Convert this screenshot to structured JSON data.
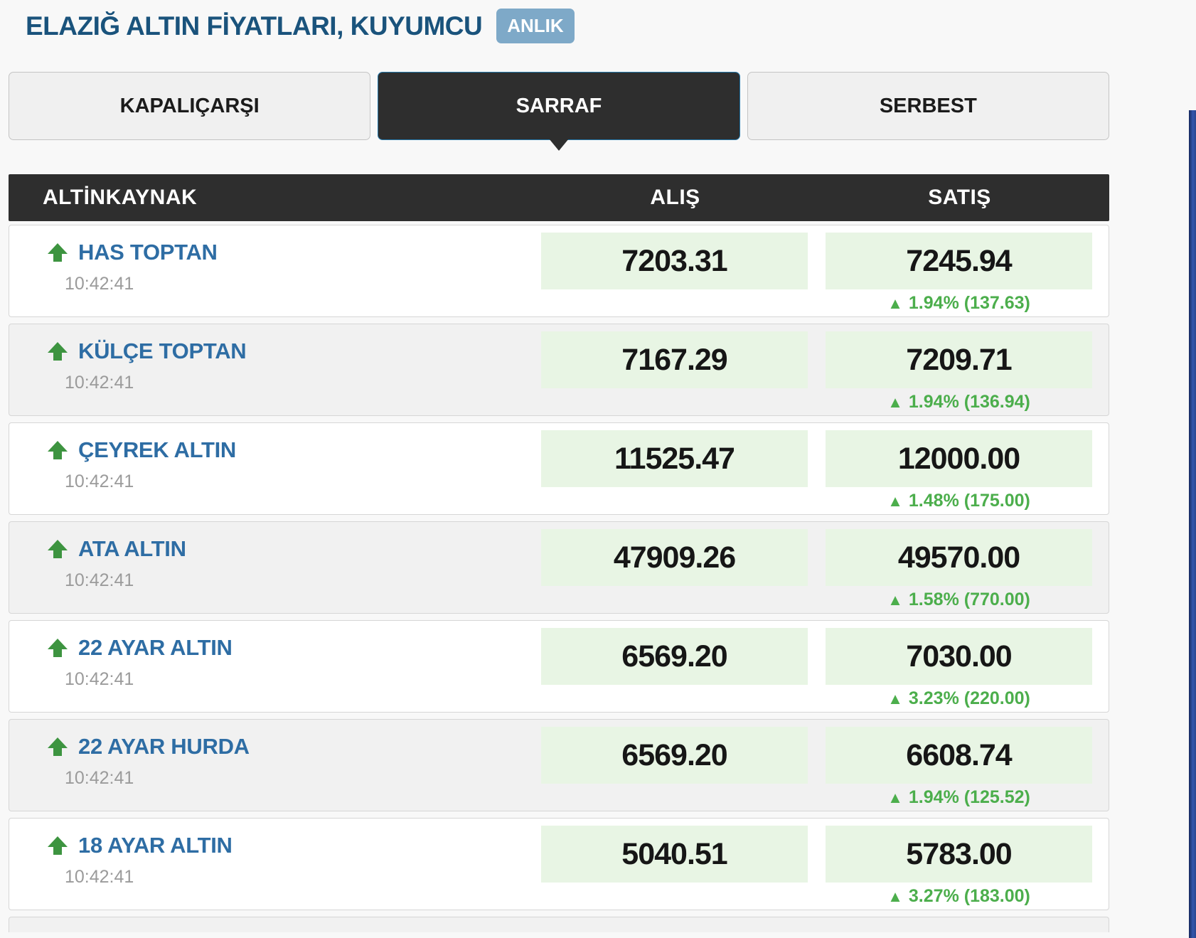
{
  "page": {
    "title": "ELAZIĞ ALTIN FİYATLARI, KUYUMCU",
    "badge": "ANLIK"
  },
  "tabs": [
    {
      "label": "KAPALIÇARŞI",
      "active": false
    },
    {
      "label": "SARRAF",
      "active": true
    },
    {
      "label": "SERBEST",
      "active": false
    }
  ],
  "table": {
    "headers": {
      "source": "ALTİNKAYNAK",
      "buy": "ALIŞ",
      "sell": "SATIŞ"
    },
    "rows": [
      {
        "name": "HAS TOPTAN",
        "time": "10:42:41",
        "buy": "7203.31",
        "sell": "7245.94",
        "change": "1.94% (137.63)",
        "direction": "up"
      },
      {
        "name": "KÜLÇE TOPTAN",
        "time": "10:42:41",
        "buy": "7167.29",
        "sell": "7209.71",
        "change": "1.94% (136.94)",
        "direction": "up"
      },
      {
        "name": "ÇEYREK ALTIN",
        "time": "10:42:41",
        "buy": "11525.47",
        "sell": "12000.00",
        "change": "1.48% (175.00)",
        "direction": "up"
      },
      {
        "name": "ATA ALTIN",
        "time": "10:42:41",
        "buy": "47909.26",
        "sell": "49570.00",
        "change": "1.58% (770.00)",
        "direction": "up"
      },
      {
        "name": "22 AYAR ALTIN",
        "time": "10:42:41",
        "buy": "6569.20",
        "sell": "7030.00",
        "change": "3.23% (220.00)",
        "direction": "up"
      },
      {
        "name": "22 AYAR HURDA",
        "time": "10:42:41",
        "buy": "6569.20",
        "sell": "6608.74",
        "change": "1.94% (125.52)",
        "direction": "up"
      },
      {
        "name": "18 AYAR ALTIN",
        "time": "10:42:41",
        "buy": "5040.51",
        "sell": "5783.00",
        "change": "3.27% (183.00)",
        "direction": "up"
      }
    ]
  },
  "icons": {
    "row_trend": "up-arrow-icon",
    "change_glyph": "▲"
  },
  "colors": {
    "title_blue": "#1a537c",
    "badge_blue": "#7ea9c8",
    "tab_dark": "#2e2e2e",
    "link_blue": "#2e6da4",
    "arrow_green": "#3d9440",
    "change_green": "#4cae4c",
    "price_bg_green": "#e8f5e4"
  }
}
